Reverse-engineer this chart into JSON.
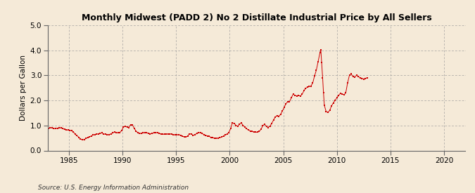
{
  "title": "Monthly Midwest (PADD 2) No 2 Distillate Industrial Price by All Sellers",
  "ylabel": "Dollars per Gallon",
  "source": "Source: U.S. Energy Information Administration",
  "background_color": "#f5ead8",
  "line_color": "#cc0000",
  "xlim": [
    1983,
    2022
  ],
  "ylim": [
    0.0,
    5.0
  ],
  "xticks": [
    1985,
    1990,
    1995,
    2000,
    2005,
    2010,
    2015,
    2020
  ],
  "yticks": [
    0.0,
    1.0,
    2.0,
    3.0,
    4.0,
    5.0
  ],
  "data": [
    [
      1983.08,
      0.88
    ],
    [
      1983.25,
      0.91
    ],
    [
      1983.42,
      0.91
    ],
    [
      1983.58,
      0.87
    ],
    [
      1983.75,
      0.88
    ],
    [
      1983.92,
      0.89
    ],
    [
      1984.08,
      0.91
    ],
    [
      1984.25,
      0.9
    ],
    [
      1984.42,
      0.88
    ],
    [
      1984.58,
      0.84
    ],
    [
      1984.75,
      0.82
    ],
    [
      1984.92,
      0.82
    ],
    [
      1985.08,
      0.81
    ],
    [
      1985.25,
      0.79
    ],
    [
      1985.42,
      0.74
    ],
    [
      1985.58,
      0.65
    ],
    [
      1985.75,
      0.59
    ],
    [
      1985.92,
      0.53
    ],
    [
      1986.08,
      0.46
    ],
    [
      1986.25,
      0.43
    ],
    [
      1986.42,
      0.44
    ],
    [
      1986.58,
      0.48
    ],
    [
      1986.75,
      0.52
    ],
    [
      1986.92,
      0.55
    ],
    [
      1987.08,
      0.58
    ],
    [
      1987.25,
      0.62
    ],
    [
      1987.42,
      0.64
    ],
    [
      1987.58,
      0.65
    ],
    [
      1987.75,
      0.67
    ],
    [
      1987.92,
      0.69
    ],
    [
      1988.08,
      0.7
    ],
    [
      1988.25,
      0.66
    ],
    [
      1988.42,
      0.65
    ],
    [
      1988.58,
      0.63
    ],
    [
      1988.75,
      0.64
    ],
    [
      1988.92,
      0.66
    ],
    [
      1989.08,
      0.7
    ],
    [
      1989.25,
      0.73
    ],
    [
      1989.42,
      0.72
    ],
    [
      1989.58,
      0.7
    ],
    [
      1989.75,
      0.72
    ],
    [
      1989.92,
      0.8
    ],
    [
      1990.08,
      0.93
    ],
    [
      1990.25,
      0.97
    ],
    [
      1990.42,
      0.94
    ],
    [
      1990.58,
      0.92
    ],
    [
      1990.75,
      1.03
    ],
    [
      1990.92,
      1.03
    ],
    [
      1991.08,
      0.89
    ],
    [
      1991.25,
      0.78
    ],
    [
      1991.42,
      0.71
    ],
    [
      1991.58,
      0.68
    ],
    [
      1991.75,
      0.68
    ],
    [
      1991.92,
      0.7
    ],
    [
      1992.08,
      0.72
    ],
    [
      1992.25,
      0.71
    ],
    [
      1992.42,
      0.69
    ],
    [
      1992.58,
      0.67
    ],
    [
      1992.75,
      0.68
    ],
    [
      1992.92,
      0.7
    ],
    [
      1993.08,
      0.72
    ],
    [
      1993.25,
      0.71
    ],
    [
      1993.42,
      0.69
    ],
    [
      1993.58,
      0.66
    ],
    [
      1993.75,
      0.65
    ],
    [
      1993.92,
      0.65
    ],
    [
      1994.08,
      0.65
    ],
    [
      1994.25,
      0.67
    ],
    [
      1994.42,
      0.67
    ],
    [
      1994.58,
      0.65
    ],
    [
      1994.75,
      0.63
    ],
    [
      1994.92,
      0.63
    ],
    [
      1995.08,
      0.63
    ],
    [
      1995.25,
      0.63
    ],
    [
      1995.42,
      0.61
    ],
    [
      1995.58,
      0.57
    ],
    [
      1995.75,
      0.55
    ],
    [
      1995.92,
      0.54
    ],
    [
      1996.08,
      0.58
    ],
    [
      1996.25,
      0.67
    ],
    [
      1996.42,
      0.66
    ],
    [
      1996.58,
      0.61
    ],
    [
      1996.75,
      0.63
    ],
    [
      1996.92,
      0.68
    ],
    [
      1997.08,
      0.72
    ],
    [
      1997.25,
      0.71
    ],
    [
      1997.42,
      0.68
    ],
    [
      1997.58,
      0.64
    ],
    [
      1997.75,
      0.61
    ],
    [
      1997.92,
      0.58
    ],
    [
      1998.08,
      0.56
    ],
    [
      1998.25,
      0.53
    ],
    [
      1998.42,
      0.51
    ],
    [
      1998.58,
      0.49
    ],
    [
      1998.75,
      0.49
    ],
    [
      1998.92,
      0.5
    ],
    [
      1999.08,
      0.51
    ],
    [
      1999.25,
      0.54
    ],
    [
      1999.42,
      0.58
    ],
    [
      1999.58,
      0.62
    ],
    [
      1999.75,
      0.65
    ],
    [
      1999.92,
      0.72
    ],
    [
      2000.08,
      0.87
    ],
    [
      2000.25,
      1.1
    ],
    [
      2000.42,
      1.09
    ],
    [
      2000.58,
      1.0
    ],
    [
      2000.75,
      0.97
    ],
    [
      2000.92,
      1.05
    ],
    [
      2001.08,
      1.1
    ],
    [
      2001.25,
      1.0
    ],
    [
      2001.42,
      0.93
    ],
    [
      2001.58,
      0.87
    ],
    [
      2001.75,
      0.82
    ],
    [
      2001.92,
      0.78
    ],
    [
      2002.08,
      0.76
    ],
    [
      2002.25,
      0.74
    ],
    [
      2002.42,
      0.73
    ],
    [
      2002.58,
      0.73
    ],
    [
      2002.75,
      0.76
    ],
    [
      2002.92,
      0.85
    ],
    [
      2003.08,
      0.98
    ],
    [
      2003.25,
      1.05
    ],
    [
      2003.42,
      0.96
    ],
    [
      2003.58,
      0.92
    ],
    [
      2003.75,
      0.97
    ],
    [
      2003.92,
      1.08
    ],
    [
      2004.08,
      1.21
    ],
    [
      2004.25,
      1.34
    ],
    [
      2004.42,
      1.39
    ],
    [
      2004.58,
      1.37
    ],
    [
      2004.75,
      1.44
    ],
    [
      2004.92,
      1.58
    ],
    [
      2005.08,
      1.72
    ],
    [
      2005.25,
      1.87
    ],
    [
      2005.42,
      1.95
    ],
    [
      2005.58,
      1.95
    ],
    [
      2005.75,
      2.1
    ],
    [
      2005.92,
      2.25
    ],
    [
      2006.08,
      2.2
    ],
    [
      2006.25,
      2.18
    ],
    [
      2006.42,
      2.2
    ],
    [
      2006.58,
      2.17
    ],
    [
      2006.75,
      2.24
    ],
    [
      2006.92,
      2.38
    ],
    [
      2007.08,
      2.48
    ],
    [
      2007.25,
      2.52
    ],
    [
      2007.42,
      2.55
    ],
    [
      2007.58,
      2.57
    ],
    [
      2007.75,
      2.7
    ],
    [
      2007.92,
      2.98
    ],
    [
      2008.08,
      3.2
    ],
    [
      2008.25,
      3.55
    ],
    [
      2008.42,
      3.9
    ],
    [
      2008.5,
      4.02
    ],
    [
      2008.58,
      3.5
    ],
    [
      2008.67,
      2.9
    ],
    [
      2008.75,
      2.3
    ],
    [
      2008.83,
      1.8
    ],
    [
      2009.0,
      1.55
    ],
    [
      2009.17,
      1.52
    ],
    [
      2009.33,
      1.6
    ],
    [
      2009.5,
      1.78
    ],
    [
      2009.67,
      1.9
    ],
    [
      2009.83,
      2.0
    ],
    [
      2010.0,
      2.1
    ],
    [
      2010.17,
      2.2
    ],
    [
      2010.33,
      2.28
    ],
    [
      2010.5,
      2.25
    ],
    [
      2010.67,
      2.22
    ],
    [
      2010.83,
      2.3
    ],
    [
      2011.0,
      2.7
    ],
    [
      2011.17,
      3.0
    ],
    [
      2011.33,
      3.05
    ],
    [
      2011.5,
      2.95
    ],
    [
      2011.67,
      2.93
    ],
    [
      2011.83,
      3.0
    ],
    [
      2012.0,
      2.95
    ],
    [
      2012.17,
      2.9
    ],
    [
      2012.33,
      2.88
    ],
    [
      2012.5,
      2.85
    ],
    [
      2012.67,
      2.88
    ],
    [
      2012.83,
      2.9
    ]
  ]
}
